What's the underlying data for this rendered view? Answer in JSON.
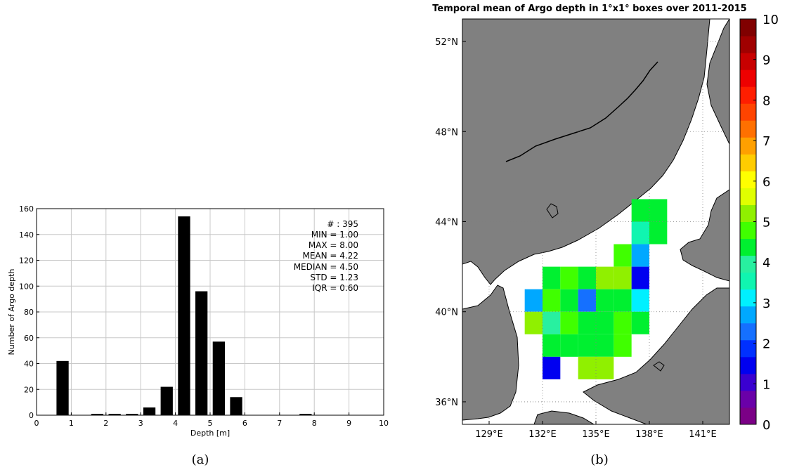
{
  "panel_labels": {
    "a": "(a)",
    "b": "(b)"
  },
  "chart_data": [
    {
      "type": "bar",
      "title": "",
      "xlabel": "Depth [m]",
      "ylabel": "Number of Argo depth",
      "xlim": [
        0,
        10
      ],
      "ylim": [
        0,
        160
      ],
      "xticks": [
        0,
        1,
        2,
        3,
        4,
        5,
        6,
        7,
        8,
        9,
        10
      ],
      "yticks": [
        0,
        20,
        40,
        60,
        80,
        100,
        120,
        140,
        160
      ],
      "grid": true,
      "bar_width": 0.35,
      "x": [
        0.75,
        1.75,
        2.25,
        2.75,
        3.25,
        3.75,
        4.25,
        4.75,
        5.25,
        5.75,
        7.75
      ],
      "values": [
        42,
        1,
        1,
        1,
        6,
        22,
        154,
        96,
        57,
        14,
        1
      ],
      "bar_color": "#000000",
      "stats": [
        "# : 395",
        "MIN = 1.00",
        "MAX =  8.00",
        "MEAN = 4.22",
        "MEDIAN = 4.50",
        "STD = 1.23",
        "IQR = 0.60"
      ]
    },
    {
      "type": "heatmap",
      "title": "Temporal mean of Argo depth in 1°x1° boxes over 2011-2015",
      "lon_range": [
        127.5,
        142.5
      ],
      "lat_range": [
        35,
        53
      ],
      "lon_ticks": [
        {
          "v": 129,
          "label": "129°E"
        },
        {
          "v": 132,
          "label": "132°E"
        },
        {
          "v": 135,
          "label": "135°E"
        },
        {
          "v": 138,
          "label": "138°E"
        },
        {
          "v": 141,
          "label": "141°E"
        }
      ],
      "lat_ticks": [
        {
          "v": 36,
          "label": "36°N"
        },
        {
          "v": 40,
          "label": "40°N"
        },
        {
          "v": 44,
          "label": "44°N"
        },
        {
          "v": 48,
          "label": "48°N"
        },
        {
          "v": 52,
          "label": "52°N"
        }
      ],
      "land_color": "#808080",
      "sea_color": "#ffffff",
      "colorbar": {
        "range": [
          0,
          10
        ],
        "ticks": [
          0,
          1,
          2,
          3,
          4,
          5,
          6,
          7,
          8,
          9,
          10
        ],
        "colors": [
          "#7b0086",
          "#6a00a8",
          "#3a00d0",
          "#0000f0",
          "#0030ff",
          "#1570ff",
          "#00a8ff",
          "#00f0ff",
          "#10f5b0",
          "#28f0a0",
          "#00f030",
          "#40ff00",
          "#90f000",
          "#e0ff00",
          "#ffff00",
          "#ffcc00",
          "#ffa000",
          "#ff7000",
          "#ff4400",
          "#ff1e00",
          "#ee0000",
          "#c80000",
          "#a00000",
          "#800000"
        ]
      },
      "cells": [
        {
          "lon": 137.5,
          "lat": 44.5,
          "v": 4.4
        },
        {
          "lon": 138.5,
          "lat": 44.5,
          "v": 4.4
        },
        {
          "lon": 137.5,
          "lat": 43.5,
          "v": 3.5
        },
        {
          "lon": 138.5,
          "lat": 43.5,
          "v": 4.4
        },
        {
          "lon": 136.5,
          "lat": 42.5,
          "v": 4.8
        },
        {
          "lon": 137.5,
          "lat": 42.5,
          "v": 2.8
        },
        {
          "lon": 132.5,
          "lat": 41.5,
          "v": 4.3
        },
        {
          "lon": 133.5,
          "lat": 41.5,
          "v": 4.9
        },
        {
          "lon": 134.5,
          "lat": 41.5,
          "v": 4.4
        },
        {
          "lon": 135.5,
          "lat": 41.5,
          "v": 5.0
        },
        {
          "lon": 136.5,
          "lat": 41.5,
          "v": 5.0
        },
        {
          "lon": 137.5,
          "lat": 41.5,
          "v": 1.5
        },
        {
          "lon": 131.5,
          "lat": 40.5,
          "v": 2.6
        },
        {
          "lon": 132.5,
          "lat": 40.5,
          "v": 4.9
        },
        {
          "lon": 133.5,
          "lat": 40.5,
          "v": 4.4
        },
        {
          "lon": 134.5,
          "lat": 40.5,
          "v": 2.2
        },
        {
          "lon": 135.5,
          "lat": 40.5,
          "v": 4.3
        },
        {
          "lon": 136.5,
          "lat": 40.5,
          "v": 4.3
        },
        {
          "lon": 137.5,
          "lat": 40.5,
          "v": 3.0
        },
        {
          "lon": 131.5,
          "lat": 39.5,
          "v": 5.3
        },
        {
          "lon": 132.5,
          "lat": 39.5,
          "v": 3.8
        },
        {
          "lon": 133.5,
          "lat": 39.5,
          "v": 4.9
        },
        {
          "lon": 134.5,
          "lat": 39.5,
          "v": 4.4
        },
        {
          "lon": 135.5,
          "lat": 39.5,
          "v": 4.4
        },
        {
          "lon": 136.5,
          "lat": 39.5,
          "v": 4.8
        },
        {
          "lon": 137.5,
          "lat": 39.5,
          "v": 4.4
        },
        {
          "lon": 132.5,
          "lat": 38.5,
          "v": 4.4
        },
        {
          "lon": 133.5,
          "lat": 38.5,
          "v": 4.4
        },
        {
          "lon": 134.5,
          "lat": 38.5,
          "v": 4.4
        },
        {
          "lon": 135.5,
          "lat": 38.5,
          "v": 4.4
        },
        {
          "lon": 136.5,
          "lat": 38.5,
          "v": 4.8
        },
        {
          "lon": 132.5,
          "lat": 37.5,
          "v": 1.6
        },
        {
          "lon": 134.5,
          "lat": 37.5,
          "v": 5.0
        },
        {
          "lon": 135.5,
          "lat": 37.5,
          "v": 5.0
        }
      ]
    }
  ]
}
